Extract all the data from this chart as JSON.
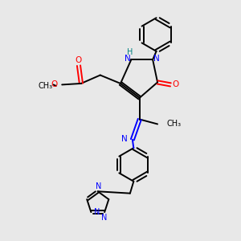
{
  "bg_color": "#e8e8e8",
  "bond_color": "#000000",
  "nitrogen_color": "#0000ff",
  "oxygen_color": "#ff0000",
  "h_color": "#008080",
  "figsize": [
    3.0,
    3.0
  ],
  "dpi": 100,
  "xlim": [
    0,
    10
  ],
  "ylim": [
    0,
    10
  ]
}
